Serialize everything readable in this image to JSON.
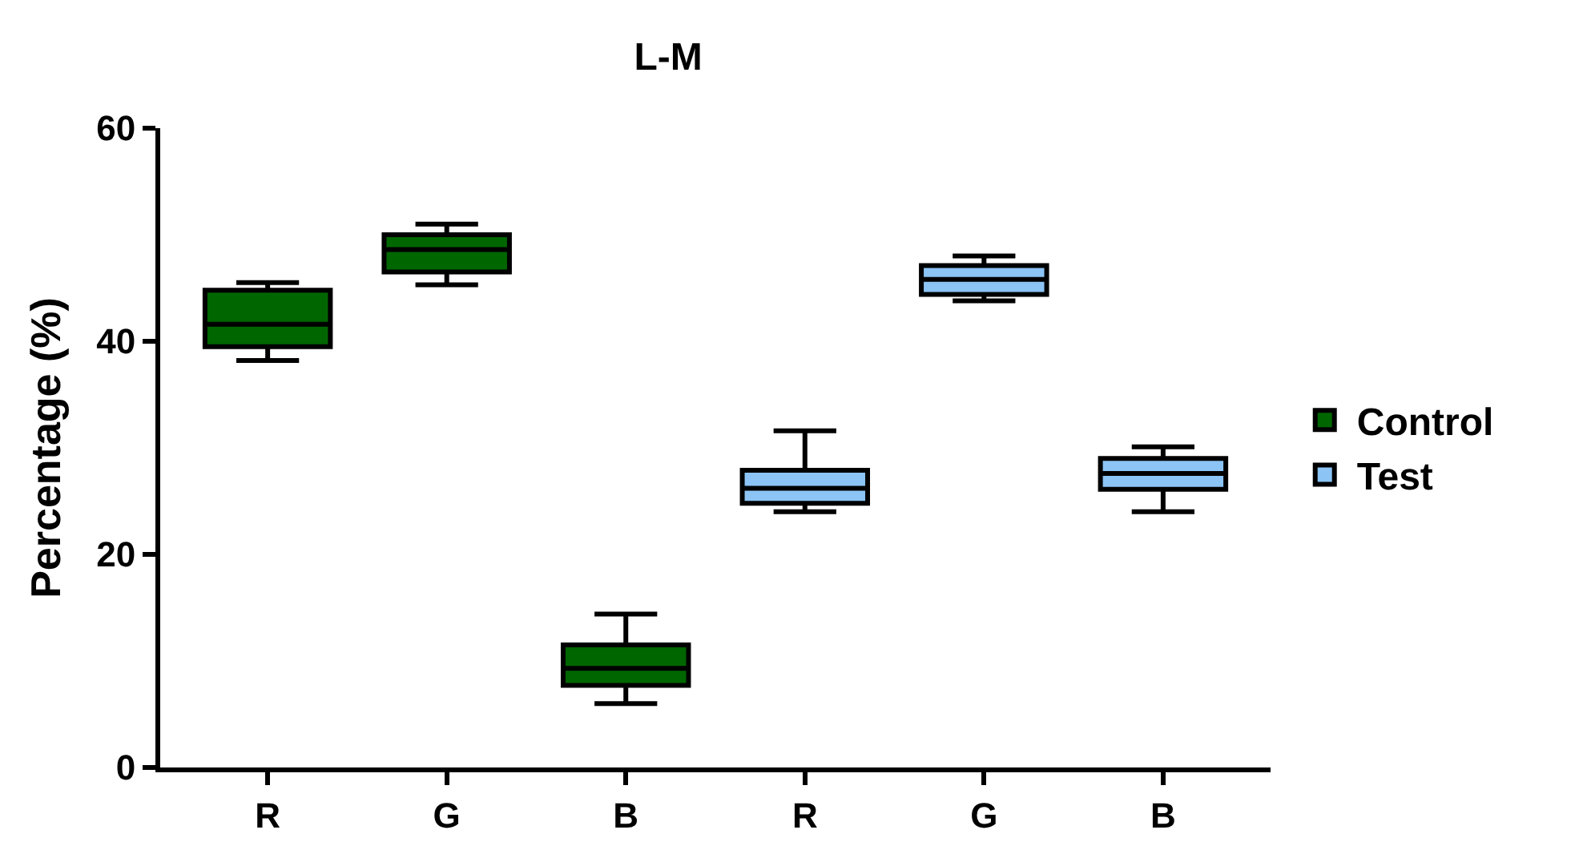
{
  "chart_data": {
    "type": "box",
    "title": "L-M",
    "ylabel": "Percentage (%)",
    "categories": [
      "R",
      "G",
      "B",
      "R",
      "G",
      "B"
    ],
    "ylim": [
      0,
      60
    ],
    "yticks": [
      0,
      20,
      40,
      60
    ],
    "legend": "right",
    "series": [
      {
        "name": "Control",
        "color": "#006600",
        "boxes": [
          {
            "low": 38.2,
            "q1": 39.5,
            "median": 41.6,
            "q3": 44.8,
            "high": 45.5
          },
          {
            "low": 45.3,
            "q1": 46.5,
            "median": 48.6,
            "q3": 50.0,
            "high": 51.0
          },
          {
            "low": 6.0,
            "q1": 7.7,
            "median": 9.3,
            "q3": 11.5,
            "high": 14.4
          },
          null,
          null,
          null
        ]
      },
      {
        "name": "Test",
        "color": "#8cc4f5",
        "boxes": [
          null,
          null,
          null,
          {
            "low": 24.0,
            "q1": 24.8,
            "median": 26.2,
            "q3": 27.9,
            "high": 31.6
          },
          {
            "low": 43.8,
            "q1": 44.4,
            "median": 45.8,
            "q3": 47.1,
            "high": 48.0
          },
          {
            "low": 24.0,
            "q1": 26.1,
            "median": 27.6,
            "q3": 29.0,
            "high": 30.1
          }
        ]
      }
    ]
  }
}
